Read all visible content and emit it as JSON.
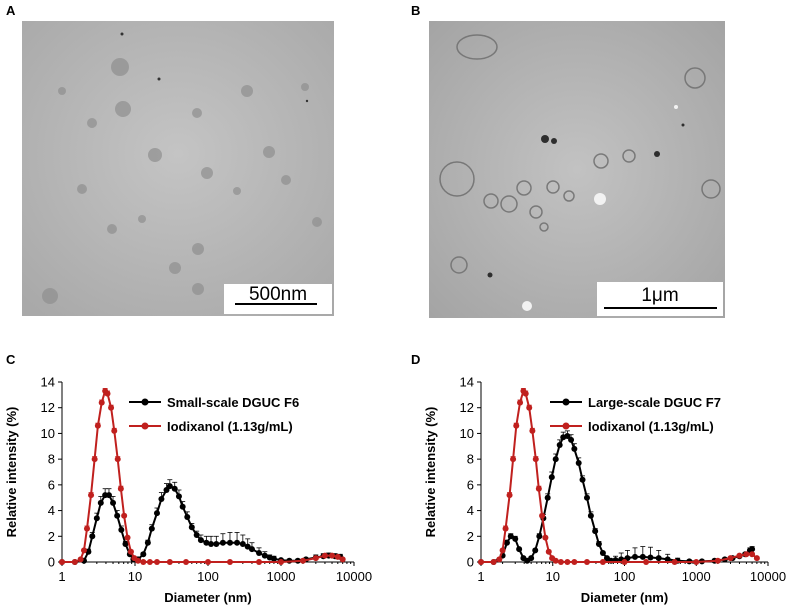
{
  "panels": {
    "a": {
      "letter": "A",
      "scale_label": "500nm"
    },
    "b": {
      "letter": "B",
      "scale_label": "1μm"
    },
    "c": {
      "letter": "C"
    },
    "d": {
      "letter": "D"
    }
  },
  "chart_data": [
    {
      "panel": "C",
      "type": "line",
      "xscale": "log",
      "xlim": [
        1,
        10000
      ],
      "ylim": [
        0,
        14
      ],
      "xlabel": "Diameter (nm)",
      "ylabel": "Relative intensity (%)",
      "xticks": [
        1,
        10,
        100,
        1000,
        10000
      ],
      "xtick_labels": [
        "1",
        "10",
        "100",
        "1000",
        "10000"
      ],
      "yticks": [
        0,
        2,
        4,
        6,
        8,
        10,
        12,
        14
      ],
      "legend_position": "top-right",
      "series": [
        {
          "name": "Small-scale DGUC F6",
          "color": "#000000",
          "x": [
            1.0,
            1.5,
            2.0,
            2.3,
            2.6,
            3.0,
            3.4,
            3.9,
            4.4,
            5.0,
            5.7,
            6.5,
            7.4,
            8.5,
            9.5,
            11,
            13,
            15,
            17,
            20,
            23,
            27,
            30,
            35,
            40,
            45,
            52,
            60,
            70,
            80,
            95,
            110,
            130,
            160,
            200,
            250,
            300,
            350,
            400,
            500,
            600,
            700,
            800,
            1000,
            1300,
            1700,
            2200,
            3000,
            3800,
            4500,
            5500,
            6500
          ],
          "y": [
            0,
            0,
            0.1,
            0.8,
            2.0,
            3.4,
            4.6,
            5.2,
            5.2,
            4.6,
            3.6,
            2.5,
            1.4,
            0.6,
            0.2,
            0.2,
            0.6,
            1.5,
            2.6,
            3.8,
            4.9,
            5.6,
            5.9,
            5.7,
            5.1,
            4.3,
            3.5,
            2.7,
            2.1,
            1.7,
            1.5,
            1.4,
            1.4,
            1.5,
            1.5,
            1.5,
            1.4,
            1.2,
            1.0,
            0.7,
            0.5,
            0.35,
            0.25,
            0.15,
            0.1,
            0.1,
            0.2,
            0.35,
            0.45,
            0.5,
            0.45,
            0.4
          ],
          "err": [
            0,
            0,
            0,
            0.2,
            0.3,
            0.4,
            0.5,
            0.5,
            0.5,
            0.5,
            0.4,
            0.3,
            0.2,
            0.1,
            0,
            0,
            0.1,
            0.2,
            0.3,
            0.4,
            0.5,
            0.5,
            0.5,
            0.5,
            0.5,
            0.4,
            0.4,
            0.3,
            0.3,
            0.4,
            0.5,
            0.6,
            0.6,
            0.7,
            0.8,
            0.8,
            0.7,
            0.6,
            0.5,
            0.4,
            0.3,
            0.2,
            0.2,
            0.1,
            0.1,
            0.1,
            0.1,
            0.2,
            0.2,
            0.2,
            0.2,
            0.2
          ]
        },
        {
          "name": "Iodixanol (1.13g/mL)",
          "color": "#c0201e",
          "x": [
            1.0,
            1.5,
            1.8,
            2.0,
            2.2,
            2.5,
            2.8,
            3.1,
            3.5,
            3.9,
            4.2,
            4.7,
            5.2,
            5.8,
            6.4,
            7.1,
            7.9,
            8.8,
            9.8,
            11,
            13,
            16,
            20,
            30,
            50,
            100,
            200,
            500,
            1000,
            2000,
            3000,
            4000,
            5000,
            6000,
            7000
          ],
          "y": [
            0,
            0,
            0.2,
            0.9,
            2.6,
            5.2,
            8.0,
            10.6,
            12.4,
            13.3,
            13.1,
            12.0,
            10.2,
            8.0,
            5.7,
            3.6,
            1.9,
            0.8,
            0.3,
            0.1,
            0,
            0,
            0,
            0,
            0,
            0,
            0,
            0,
            0,
            0.1,
            0.3,
            0.5,
            0.5,
            0.4,
            0.2
          ],
          "err": [
            0,
            0,
            0,
            0.1,
            0.2,
            0.2,
            0.2,
            0.2,
            0.2,
            0.2,
            0.2,
            0.2,
            0.2,
            0.2,
            0.2,
            0.1,
            0.1,
            0.1,
            0,
            0,
            0,
            0,
            0,
            0,
            0,
            0,
            0,
            0,
            0,
            0,
            0.1,
            0.1,
            0.1,
            0.1,
            0.1
          ]
        }
      ]
    },
    {
      "panel": "D",
      "type": "line",
      "xscale": "log",
      "xlim": [
        1,
        10000
      ],
      "ylim": [
        0,
        14
      ],
      "xlabel": "Diameter (nm)",
      "ylabel": "Relative intensity (%)",
      "xticks": [
        1,
        10,
        100,
        1000,
        10000
      ],
      "xtick_labels": [
        "1",
        "10",
        "100",
        "1000",
        "10000"
      ],
      "yticks": [
        0,
        2,
        4,
        6,
        8,
        10,
        12,
        14
      ],
      "legend_position": "top-right",
      "series": [
        {
          "name": "Large-scale DGUC F7",
          "color": "#000000",
          "x": [
            1.0,
            1.5,
            2.0,
            2.3,
            2.6,
            3.0,
            3.4,
            3.9,
            4.4,
            5.0,
            5.7,
            6.5,
            7.4,
            8.5,
            9.7,
            11,
            12.5,
            14,
            16,
            18,
            20,
            23,
            26,
            30,
            34,
            39,
            44,
            50,
            57,
            65,
            75,
            90,
            110,
            140,
            180,
            230,
            300,
            400,
            550,
            800,
            1200,
            1800,
            2500,
            3200,
            4000,
            4800,
            5600,
            6000
          ],
          "y": [
            0,
            0,
            0.5,
            1.5,
            2.0,
            1.8,
            1.0,
            0.3,
            0.1,
            0.3,
            0.9,
            2.0,
            3.4,
            5.0,
            6.6,
            8.0,
            9.1,
            9.7,
            9.8,
            9.5,
            8.8,
            7.7,
            6.4,
            5.0,
            3.6,
            2.4,
            1.4,
            0.7,
            0.3,
            0.1,
            0.15,
            0.2,
            0.3,
            0.4,
            0.4,
            0.35,
            0.3,
            0.2,
            0.1,
            0.05,
            0.05,
            0.1,
            0.2,
            0.3,
            0.45,
            0.6,
            0.9,
            1.0
          ],
          "err": [
            0,
            0,
            0.1,
            0.2,
            0.2,
            0.2,
            0.1,
            0.1,
            0,
            0.1,
            0.1,
            0.2,
            0.3,
            0.3,
            0.4,
            0.4,
            0.4,
            0.4,
            0.4,
            0.4,
            0.4,
            0.4,
            0.3,
            0.3,
            0.3,
            0.2,
            0.2,
            0.1,
            0.1,
            0.1,
            0.3,
            0.5,
            0.6,
            0.7,
            0.8,
            0.8,
            0.6,
            0.4,
            0.2,
            0.1,
            0.1,
            0.1,
            0.1,
            0.1,
            0.1,
            0.1,
            0.2,
            0.2
          ]
        },
        {
          "name": "Iodixanol (1.13g/mL)",
          "color": "#c0201e",
          "x": [
            1.0,
            1.5,
            1.8,
            2.0,
            2.2,
            2.5,
            2.8,
            3.1,
            3.5,
            3.9,
            4.2,
            4.7,
            5.2,
            5.8,
            6.4,
            7.1,
            7.9,
            8.8,
            9.8,
            11,
            13,
            16,
            20,
            30,
            50,
            100,
            200,
            500,
            1000,
            2000,
            3000,
            4000,
            5000,
            6000,
            7000
          ],
          "y": [
            0,
            0,
            0.2,
            0.9,
            2.6,
            5.2,
            8.0,
            10.6,
            12.4,
            13.3,
            13.1,
            12.0,
            10.2,
            8.0,
            5.7,
            3.6,
            1.9,
            0.8,
            0.3,
            0.1,
            0,
            0,
            0,
            0,
            0,
            0,
            0,
            0,
            0,
            0.1,
            0.3,
            0.5,
            0.6,
            0.6,
            0.3
          ],
          "err": [
            0,
            0,
            0,
            0.1,
            0.2,
            0.2,
            0.2,
            0.2,
            0.2,
            0.2,
            0.2,
            0.2,
            0.2,
            0.2,
            0.2,
            0.1,
            0.1,
            0.1,
            0,
            0,
            0,
            0,
            0,
            0,
            0,
            0,
            0,
            0,
            0,
            0,
            0.1,
            0.1,
            0.1,
            0.1,
            0.1
          ]
        }
      ]
    }
  ]
}
